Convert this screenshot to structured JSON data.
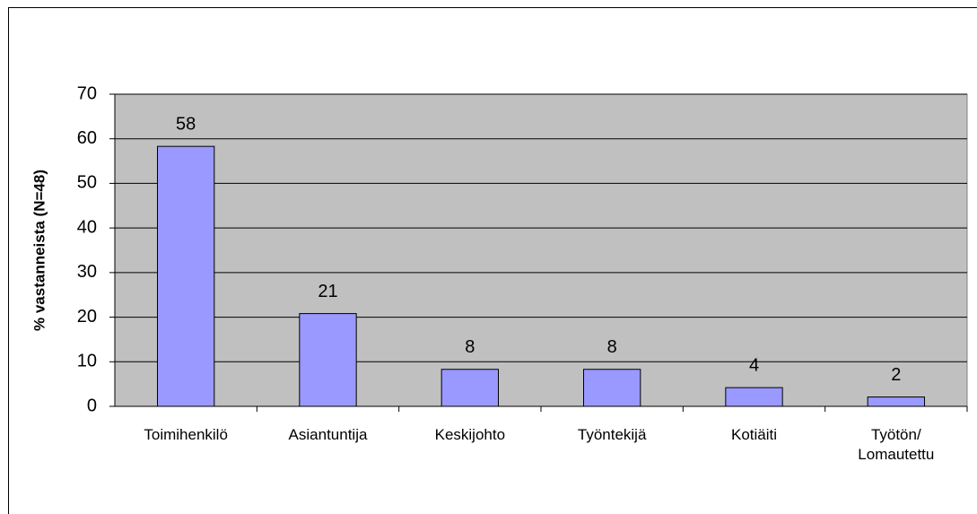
{
  "chart_data": {
    "type": "bar",
    "y_label": "% vastanneista (N=48)",
    "categories": [
      "Toimihenkilö",
      "Asiantuntija",
      "Keskijohto",
      "Työntekijä",
      "Kotiäiti",
      "Työtön/\nLomautettu"
    ],
    "values": [
      58.3,
      20.8,
      8.3,
      8.3,
      4.2,
      2.1
    ],
    "value_labels": [
      "58",
      "21",
      "8",
      "8",
      "4",
      "2"
    ],
    "color": "#9999ff",
    "ylim": [
      0,
      70
    ],
    "yticks": [
      0,
      10,
      20,
      30,
      40,
      50,
      60,
      70
    ],
    "grid": true
  }
}
